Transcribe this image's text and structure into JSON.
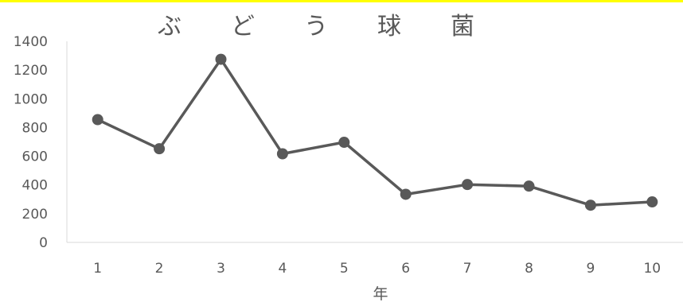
{
  "chart_data": {
    "type": "line",
    "title": "ぶどう球菌",
    "xlabel": "年",
    "ylabel": "",
    "x": [
      "1",
      "2",
      "3",
      "4",
      "5",
      "6",
      "7",
      "8",
      "9",
      "10"
    ],
    "yticks": [
      "0",
      "200",
      "400",
      "600",
      "800",
      "1000",
      "1200",
      "1400"
    ],
    "ylim": [
      0,
      1400
    ],
    "grid": false,
    "legend": "none",
    "series": [
      {
        "values": [
          855,
          652,
          1275,
          617,
          697,
          335,
          403,
          392,
          259,
          282
        ],
        "color": "#595959"
      }
    ],
    "colors": {
      "axis": "#d9d9d9",
      "text": "#595959",
      "top_border": "#ffff00"
    }
  }
}
